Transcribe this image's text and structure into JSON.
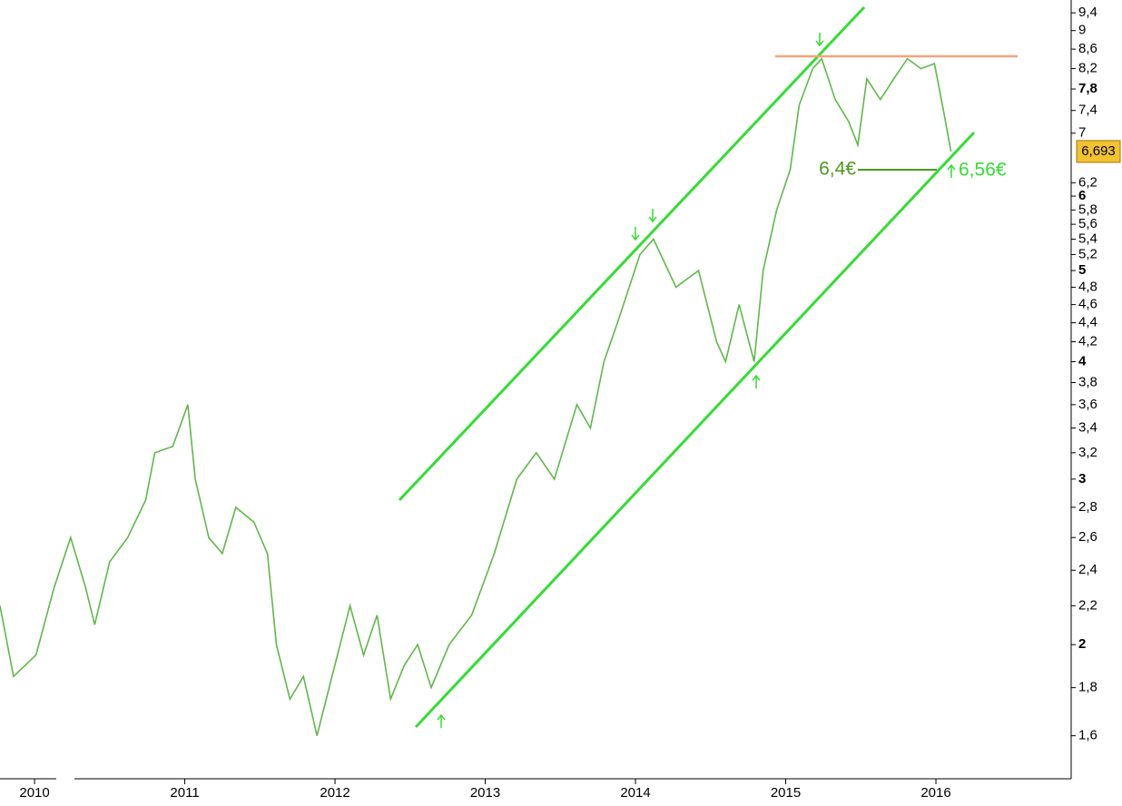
{
  "chart_data": {
    "type": "line",
    "log_scale": true,
    "color": "#5fb84a",
    "x": [
      2009.77,
      2009.86,
      2010.01,
      2010.13,
      2010.24,
      2010.34,
      2010.4,
      2010.5,
      2010.62,
      2010.74,
      2010.8,
      2010.92,
      2011.02,
      2011.07,
      2011.16,
      2011.25,
      2011.34,
      2011.46,
      2011.55,
      2011.61,
      2011.7,
      2011.79,
      2011.88,
      2011.98,
      2012.1,
      2012.19,
      2012.28,
      2012.37,
      2012.46,
      2012.55,
      2012.64,
      2012.76,
      2012.91,
      2013.06,
      2013.21,
      2013.34,
      2013.46,
      2013.61,
      2013.7,
      2013.79,
      2013.88,
      2014.03,
      2014.12,
      2014.27,
      2014.42,
      2014.54,
      2014.6,
      2014.69,
      2014.79,
      2014.85,
      2014.94,
      2015.03,
      2015.09,
      2015.18,
      2015.24,
      2015.33,
      2015.42,
      2015.48,
      2015.54,
      2015.63,
      2015.72,
      2015.81,
      2015.9,
      2015.99,
      2016.05,
      2016.1
    ],
    "values": [
      2.2,
      1.85,
      1.95,
      2.3,
      2.6,
      2.3,
      2.1,
      2.45,
      2.6,
      2.85,
      3.2,
      3.25,
      3.6,
      3.0,
      2.6,
      2.5,
      2.8,
      2.7,
      2.5,
      2.0,
      1.75,
      1.85,
      1.6,
      1.85,
      2.2,
      1.95,
      2.15,
      1.75,
      1.9,
      2.0,
      1.8,
      2.0,
      2.15,
      2.5,
      3.0,
      3.2,
      3.0,
      3.6,
      3.4,
      4.0,
      4.4,
      5.2,
      5.4,
      4.8,
      5.0,
      4.2,
      4.0,
      4.6,
      4.0,
      5.0,
      5.8,
      6.4,
      7.5,
      8.2,
      8.4,
      7.6,
      7.2,
      6.8,
      8.0,
      7.6,
      8.0,
      8.4,
      8.2,
      8.3,
      7.4,
      6.693
    ],
    "xlim": [
      2009.77,
      2016.87
    ],
    "xticks": [
      2010,
      2011,
      2012,
      2013,
      2014,
      2015,
      2016
    ],
    "ylim": [
      1.44,
      9.7
    ],
    "yticks": [
      {
        "value": 9.4,
        "label": "9,4"
      },
      9,
      {
        "value": 8.6,
        "label": "8,6"
      },
      {
        "value": 8.2,
        "label": "8,2"
      },
      {
        "value": 7.8,
        "label": "7,8"
      },
      {
        "value": 7.4,
        "label": "7,4"
      },
      7,
      {
        "value": 6.2,
        "label": "6,2"
      },
      6,
      {
        "value": 5.8,
        "label": "5,8"
      },
      {
        "value": 5.6,
        "label": "5,6"
      },
      {
        "value": 5.4,
        "label": "5,4"
      },
      {
        "value": 5.2,
        "label": "5,2"
      },
      5,
      {
        "value": 4.8,
        "label": "4,8"
      },
      {
        "value": 4.6,
        "label": "4,6"
      },
      {
        "value": 4.4,
        "label": "4,4"
      },
      {
        "value": 4.2,
        "label": "4,2"
      },
      4,
      {
        "value": 3.8,
        "label": "3,8"
      },
      {
        "value": 3.6,
        "label": "3,6"
      },
      {
        "value": 3.4,
        "label": "3,4"
      },
      {
        "value": 3.2,
        "label": "3,2"
      },
      3,
      {
        "value": 2.8,
        "label": "2,8"
      },
      {
        "value": 2.6,
        "label": "2,6"
      },
      {
        "value": 2.4,
        "label": "2,4"
      },
      {
        "value": 2.2,
        "label": "2,2"
      },
      2,
      {
        "value": 1.8,
        "label": "1,8"
      },
      {
        "value": 1.6,
        "label": "1,6"
      }
    ],
    "bold_ticks": [
      2,
      3,
      4,
      5,
      6,
      7.8
    ],
    "last_price": {
      "value": 6.693,
      "label": "6,693"
    },
    "resistance_level": 8.45,
    "support_annotation": {
      "value": 6.4,
      "label": "6,4€"
    },
    "target_annotation": {
      "value": 6.56,
      "label": "6,56€"
    }
  }
}
